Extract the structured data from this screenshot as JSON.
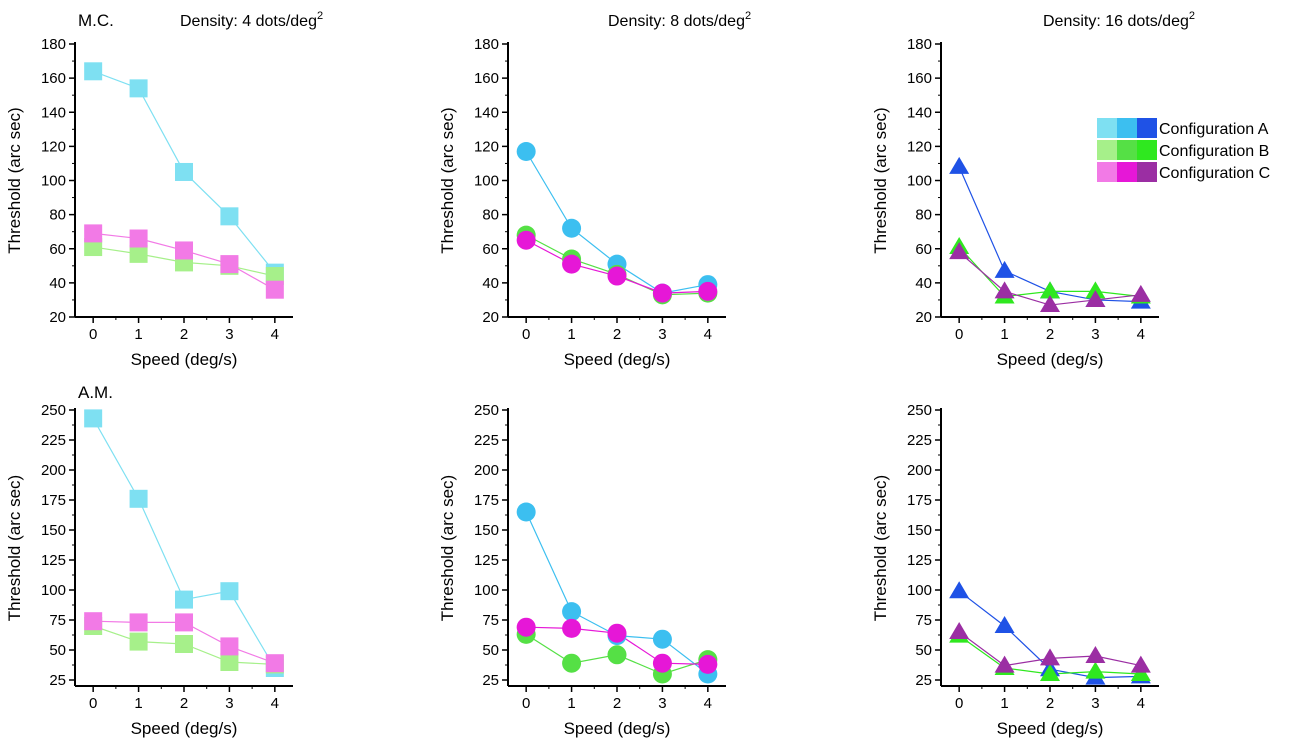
{
  "figure": {
    "row_labels": [
      "M.C.",
      "A.M."
    ],
    "column_titles": [
      {
        "prefix": "Density: 4 dots/deg",
        "sup": "2"
      },
      {
        "prefix": "Density: 8 dots/deg",
        "sup": "2"
      },
      {
        "prefix": "Density: 16 dots/deg",
        "sup": "2"
      }
    ]
  },
  "legend": {
    "placement": "upper-right of top-right panel",
    "entries": [
      {
        "label": "Configuration A",
        "swatches": [
          "#7ee0f2",
          "#3cbff0",
          "#1f52e6"
        ]
      },
      {
        "label": "Configuration B",
        "swatches": [
          "#a6f08a",
          "#55e045",
          "#2fe81f"
        ]
      },
      {
        "label": "Configuration C",
        "swatches": [
          "#f27ae6",
          "#e617d7",
          "#9b2ea3"
        ]
      }
    ]
  },
  "chart_data": [
    {
      "type": "line",
      "marker": "square",
      "row": 0,
      "col": 0,
      "row_label": "M.C.",
      "title": "Density: 4 dots/deg2",
      "xlabel": "Speed (deg/s)",
      "ylabel": "Threshold (arc sec)",
      "x": [
        0,
        1,
        2,
        3,
        4
      ],
      "xlim": [
        -0.4,
        4.4
      ],
      "ylim": [
        20,
        180
      ],
      "yticks": [
        20,
        40,
        60,
        80,
        100,
        120,
        140,
        160,
        180
      ],
      "series": [
        {
          "color": "#7ee0f2",
          "values": [
            164,
            154,
            105,
            79,
            46
          ]
        },
        {
          "color": "#a6f08a",
          "values": [
            61,
            57,
            52,
            50,
            44
          ]
        },
        {
          "color": "#f27ae6",
          "values": [
            69,
            66,
            59,
            51,
            36
          ]
        }
      ]
    },
    {
      "type": "line",
      "marker": "circle",
      "row": 0,
      "col": 1,
      "title": "Density: 8 dots/deg2",
      "xlabel": "Speed (deg/s)",
      "ylabel": "Threshold (arc sec)",
      "x": [
        0,
        1,
        2,
        3,
        4
      ],
      "xlim": [
        -0.4,
        4.4
      ],
      "ylim": [
        20,
        180
      ],
      "yticks": [
        20,
        40,
        60,
        80,
        100,
        120,
        140,
        160,
        180
      ],
      "series": [
        {
          "color": "#3cbff0",
          "values": [
            117,
            72,
            51,
            34,
            39
          ]
        },
        {
          "color": "#55e045",
          "values": [
            68,
            54,
            45,
            33,
            34
          ]
        },
        {
          "color": "#e617d7",
          "values": [
            65,
            51,
            44,
            34,
            35
          ]
        }
      ]
    },
    {
      "type": "line",
      "marker": "triangle",
      "row": 0,
      "col": 2,
      "title": "Density: 16 dots/deg2",
      "xlabel": "Speed (deg/s)",
      "ylabel": "Threshold (arc sec)",
      "x": [
        0,
        1,
        2,
        3,
        4
      ],
      "xlim": [
        -0.4,
        4.4
      ],
      "ylim": [
        20,
        180
      ],
      "yticks": [
        20,
        40,
        60,
        80,
        100,
        120,
        140,
        160,
        180
      ],
      "series": [
        {
          "color": "#1f52e6",
          "values": [
            108,
            47,
            35,
            30,
            29
          ]
        },
        {
          "color": "#2fe81f",
          "values": [
            61,
            32,
            35,
            35,
            32
          ]
        },
        {
          "color": "#9b2ea3",
          "values": [
            58,
            35,
            27,
            30,
            33
          ]
        }
      ]
    },
    {
      "type": "line",
      "marker": "square",
      "row": 1,
      "col": 0,
      "row_label": "A.M.",
      "title": "",
      "xlabel": "Speed (deg/s)",
      "ylabel": "Threshold (arc sec)",
      "x": [
        0,
        1,
        2,
        3,
        4
      ],
      "xlim": [
        -0.4,
        4.4
      ],
      "ylim": [
        20,
        250
      ],
      "yticks": [
        25,
        50,
        75,
        100,
        125,
        150,
        175,
        200,
        225,
        250
      ],
      "series": [
        {
          "color": "#7ee0f2",
          "values": [
            243,
            176,
            92,
            99,
            35
          ]
        },
        {
          "color": "#a6f08a",
          "values": [
            70,
            57,
            55,
            40,
            38
          ]
        },
        {
          "color": "#f27ae6",
          "values": [
            74,
            73,
            73,
            53,
            39
          ]
        }
      ]
    },
    {
      "type": "line",
      "marker": "circle",
      "row": 1,
      "col": 1,
      "title": "",
      "xlabel": "Speed (deg/s)",
      "ylabel": "Threshold (arc sec)",
      "x": [
        0,
        1,
        2,
        3,
        4
      ],
      "xlim": [
        -0.4,
        4.4
      ],
      "ylim": [
        20,
        250
      ],
      "yticks": [
        25,
        50,
        75,
        100,
        125,
        150,
        175,
        200,
        225,
        250
      ],
      "series": [
        {
          "color": "#3cbff0",
          "values": [
            165,
            82,
            62,
            59,
            30
          ]
        },
        {
          "color": "#55e045",
          "values": [
            63,
            39,
            46,
            30,
            42
          ]
        },
        {
          "color": "#e617d7",
          "values": [
            69,
            68,
            64,
            39,
            38
          ]
        }
      ]
    },
    {
      "type": "line",
      "marker": "triangle",
      "row": 1,
      "col": 2,
      "title": "",
      "xlabel": "Speed (deg/s)",
      "ylabel": "Threshold (arc sec)",
      "x": [
        0,
        1,
        2,
        3,
        4
      ],
      "xlim": [
        -0.4,
        4.4
      ],
      "ylim": [
        20,
        250
      ],
      "yticks": [
        25,
        50,
        75,
        100,
        125,
        150,
        175,
        200,
        225,
        250
      ],
      "series": [
        {
          "color": "#1f52e6",
          "values": [
            99,
            70,
            34,
            27,
            28
          ]
        },
        {
          "color": "#2fe81f",
          "values": [
            62,
            35,
            30,
            32,
            30
          ]
        },
        {
          "color": "#9b2ea3",
          "values": [
            65,
            37,
            43,
            45,
            37
          ]
        }
      ]
    }
  ]
}
